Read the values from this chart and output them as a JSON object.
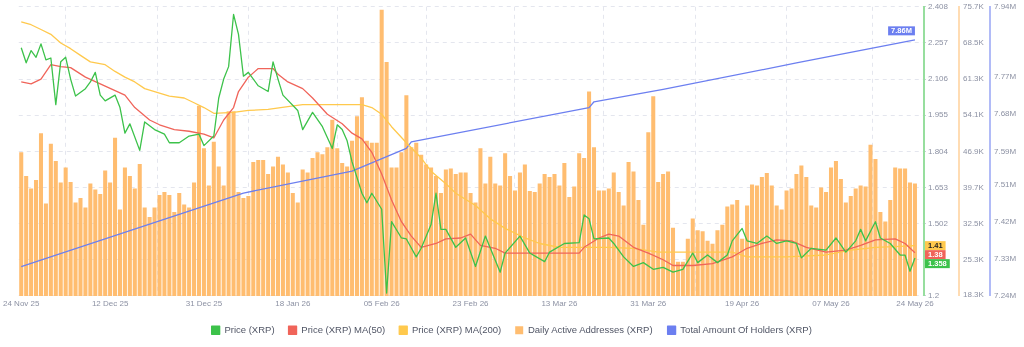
{
  "chart_data": {
    "type": "line",
    "legend": "bottom",
    "grid": true,
    "xlim": [
      "2025-11-23T12:00",
      "2026-05-25T20:00"
    ],
    "xticks": [
      {
        "value": "2025-11-24",
        "label": "24 Nov 25"
      },
      {
        "value": "2025-12-12",
        "label": "12 Dec 25"
      },
      {
        "value": "2025-12-31",
        "label": "31 Dec 25"
      },
      {
        "value": "2026-01-18",
        "label": "18 Jan 26"
      },
      {
        "value": "2026-02-05",
        "label": "05 Feb 26"
      },
      {
        "value": "2026-02-23",
        "label": "23 Feb 26"
      },
      {
        "value": "2026-03-13",
        "label": "13 Mar 26"
      },
      {
        "value": "2026-03-31",
        "label": "31 Mar 26"
      },
      {
        "value": "2026-04-19",
        "label": "19 Apr 26"
      },
      {
        "value": "2026-05-07",
        "label": "07 May 26"
      },
      {
        "value": "2026-05-24",
        "label": "24 May 26"
      }
    ],
    "ylim": [
      1.2,
      2.408
    ],
    "yticks": [
      1.2,
      {
        "value": 1.351,
        "label": null
      },
      1.502,
      1.653,
      1.804,
      1.955,
      2.106,
      2.257,
      2.408
    ],
    "y2lim": [
      18.1,
      75.7
    ],
    "y2ticks": [
      {
        "value": 18.3,
        "label": "18.3K"
      },
      {
        "value": 25.3,
        "label": "25.3K"
      },
      {
        "value": 32.5,
        "label": "32.5K"
      },
      {
        "value": 39.7,
        "label": "39.7K"
      },
      {
        "value": 46.9,
        "label": "46.9K"
      },
      {
        "value": 54.1,
        "label": "54.1K"
      },
      {
        "value": 61.3,
        "label": "61.3K"
      },
      {
        "value": 68.5,
        "label": "68.5K"
      },
      {
        "value": 75.7,
        "label": "75.7K"
      }
    ],
    "y3lim": [
      7.24,
      7.94
    ],
    "y3ticks": [
      {
        "value": 7.24,
        "label": "7.24M"
      },
      {
        "value": 7.33,
        "label": "7.33M"
      },
      {
        "value": 7.42,
        "label": "7.42M"
      },
      {
        "value": 7.51,
        "label": "7.51M"
      },
      {
        "value": 7.59,
        "label": "7.59M"
      },
      {
        "value": 7.68,
        "label": "7.68M"
      },
      {
        "value": 7.77,
        "label": "7.77M"
      },
      {
        "value": 7.85,
        "label": null
      },
      {
        "value": 7.94,
        "label": "7.94M"
      }
    ],
    "x": [
      "2025-11-24",
      "2025-11-25",
      "2025-11-26",
      "2025-11-27",
      "2025-11-28",
      "2025-11-29",
      "2025-11-30",
      "2025-12-01",
      "2025-12-02",
      "2025-12-03",
      "2025-12-04",
      "2025-12-05",
      "2025-12-06",
      "2025-12-07",
      "2025-12-08",
      "2025-12-09",
      "2025-12-10",
      "2025-12-11",
      "2025-12-12",
      "2025-12-13",
      "2025-12-14",
      "2025-12-15",
      "2025-12-16",
      "2025-12-17",
      "2025-12-18",
      "2025-12-19",
      "2025-12-20",
      "2025-12-21",
      "2025-12-22",
      "2025-12-23",
      "2025-12-24",
      "2025-12-25",
      "2025-12-26",
      "2025-12-27",
      "2025-12-28",
      "2025-12-29",
      "2025-12-30",
      "2025-12-31",
      "2026-01-01",
      "2026-01-02",
      "2026-01-03",
      "2026-01-04",
      "2026-01-05",
      "2026-01-06",
      "2026-01-07",
      "2026-01-08",
      "2026-01-09",
      "2026-01-10",
      "2026-01-11",
      "2026-01-12",
      "2026-01-13",
      "2026-01-14",
      "2026-01-15",
      "2026-01-16",
      "2026-01-17",
      "2026-01-18",
      "2026-01-19",
      "2026-01-20",
      "2026-01-21",
      "2026-01-22",
      "2026-01-23",
      "2026-01-24",
      "2026-01-25",
      "2026-01-26",
      "2026-01-27",
      "2026-01-28",
      "2026-01-29",
      "2026-01-30",
      "2026-01-31",
      "2026-02-01",
      "2026-02-02",
      "2026-02-03",
      "2026-02-04",
      "2026-02-05",
      "2026-02-06",
      "2026-02-07",
      "2026-02-08",
      "2026-02-09",
      "2026-02-10",
      "2026-02-11",
      "2026-02-12",
      "2026-02-13",
      "2026-02-14",
      "2026-02-15",
      "2026-02-16",
      "2026-02-17",
      "2026-02-18",
      "2026-02-19",
      "2026-02-20",
      "2026-02-21",
      "2026-02-22",
      "2026-02-23",
      "2026-02-24",
      "2026-02-25",
      "2026-02-26",
      "2026-02-27",
      "2026-02-28",
      "2026-03-01",
      "2026-03-02",
      "2026-03-03",
      "2026-03-04",
      "2026-03-05",
      "2026-03-06",
      "2026-03-07",
      "2026-03-08",
      "2026-03-09",
      "2026-03-10",
      "2026-03-11",
      "2026-03-12",
      "2026-03-13",
      "2026-03-14",
      "2026-03-15",
      "2026-03-16",
      "2026-03-17",
      "2026-03-18",
      "2026-03-19",
      "2026-03-20",
      "2026-03-21",
      "2026-03-22",
      "2026-03-23",
      "2026-03-24",
      "2026-03-25",
      "2026-03-26",
      "2026-03-27",
      "2026-03-28",
      "2026-03-29",
      "2026-03-30",
      "2026-03-31",
      "2026-04-01",
      "2026-04-02",
      "2026-04-03",
      "2026-04-04",
      "2026-04-05",
      "2026-04-06",
      "2026-04-07",
      "2026-04-08",
      "2026-04-09",
      "2026-04-10",
      "2026-04-11",
      "2026-04-12",
      "2026-04-13",
      "2026-04-14",
      "2026-04-15",
      "2026-04-16",
      "2026-04-17",
      "2026-04-18",
      "2026-04-19",
      "2026-04-20",
      "2026-04-21",
      "2026-04-22",
      "2026-04-23",
      "2026-04-24",
      "2026-04-25",
      "2026-04-26",
      "2026-04-27",
      "2026-04-28",
      "2026-04-29",
      "2026-04-30",
      "2026-05-01",
      "2026-05-02",
      "2026-05-03",
      "2026-05-04",
      "2026-05-05",
      "2026-05-06",
      "2026-05-07",
      "2026-05-08",
      "2026-05-09",
      "2026-05-10",
      "2026-05-11",
      "2026-05-12",
      "2026-05-13",
      "2026-05-14",
      "2026-05-15",
      "2026-05-16",
      "2026-05-17",
      "2026-05-18",
      "2026-05-19",
      "2026-05-20",
      "2026-05-21",
      "2026-05-22",
      "2026-05-23",
      "2026-05-24"
    ],
    "series": [
      {
        "name": "Price (XRP)",
        "color": "#3cc24a",
        "x": [
          "2025-11-24",
          "2025-11-25",
          "2025-11-26",
          "2025-11-27",
          "2025-11-28",
          "2025-11-29",
          "2025-11-30",
          "2025-12-01",
          "2025-12-02",
          "2025-12-03",
          "2025-12-04",
          "2025-12-05",
          "2025-12-07",
          "2025-12-08",
          "2025-12-09",
          "2025-12-10",
          "2025-12-11",
          "2025-12-13",
          "2025-12-14",
          "2025-12-15",
          "2025-12-16",
          "2025-12-18",
          "2025-12-19",
          "2025-12-21",
          "2025-12-23",
          "2025-12-24",
          "2025-12-26",
          "2025-12-28",
          "2025-12-30",
          "2025-12-31",
          "2026-01-02",
          "2026-01-03",
          "2026-01-04",
          "2026-01-05",
          "2026-01-06",
          "2026-01-07",
          "2026-01-08",
          "2026-01-09",
          "2026-01-11",
          "2026-01-13",
          "2026-01-14",
          "2026-01-15",
          "2026-01-16",
          "2026-01-19",
          "2026-01-20",
          "2026-01-22",
          "2026-01-24",
          "2026-01-26",
          "2026-01-27",
          "2026-01-28",
          "2026-01-29",
          "2026-01-30",
          "2026-02-01",
          "2026-02-02",
          "2026-02-03",
          "2026-02-05",
          "2026-02-06",
          "2026-02-07",
          "2026-02-09",
          "2026-02-10",
          "2026-02-12",
          "2026-02-13",
          "2026-02-15",
          "2026-02-16",
          "2026-02-17",
          "2026-02-18",
          "2026-02-20",
          "2026-02-22",
          "2026-02-24",
          "2026-02-26",
          "2026-03-01",
          "2026-03-02",
          "2026-03-05",
          "2026-03-07",
          "2026-03-10",
          "2026-03-11",
          "2026-03-14",
          "2026-03-17",
          "2026-03-18",
          "2026-03-19",
          "2026-03-20",
          "2026-03-23",
          "2026-03-24",
          "2026-03-26",
          "2026-03-28",
          "2026-03-30",
          "2026-04-01",
          "2026-04-03",
          "2026-04-05",
          "2026-04-07",
          "2026-04-09",
          "2026-04-10",
          "2026-04-12",
          "2026-04-14",
          "2026-04-16",
          "2026-04-17",
          "2026-04-19",
          "2026-04-20",
          "2026-04-22",
          "2026-04-24",
          "2026-04-26",
          "2026-04-28",
          "2026-04-30",
          "2026-05-01",
          "2026-05-03",
          "2026-05-06",
          "2026-05-08",
          "2026-05-10",
          "2026-05-12",
          "2026-05-13",
          "2026-05-14",
          "2026-05-16",
          "2026-05-17",
          "2026-05-19",
          "2026-05-21",
          "2026-05-22",
          "2026-05-23",
          "2026-05-24"
        ],
        "values": [
          2.237,
          2.174,
          2.225,
          2.197,
          2.253,
          2.186,
          2.194,
          1.999,
          2.178,
          2.197,
          2.106,
          2.035,
          2.066,
          2.094,
          2.134,
          2.039,
          2.015,
          2.039,
          1.987,
          1.88,
          1.919,
          1.808,
          1.927,
          1.895,
          1.876,
          1.84,
          1.84,
          1.868,
          1.876,
          1.828,
          1.868,
          2.027,
          2.106,
          2.158,
          2.376,
          2.293,
          2.118,
          2.134,
          2.078,
          2.054,
          2.178,
          2.106,
          2.039,
          1.975,
          1.895,
          1.967,
          1.907,
          1.816,
          1.915,
          1.895,
          1.848,
          1.76,
          1.629,
          1.589,
          1.629,
          1.562,
          1.212,
          1.51,
          1.442,
          1.438,
          1.363,
          1.399,
          1.498,
          1.629,
          1.478,
          1.478,
          1.403,
          1.442,
          1.323,
          1.45,
          1.299,
          1.379,
          1.45,
          1.379,
          1.343,
          1.383,
          1.419,
          1.423,
          1.538,
          1.522,
          1.438,
          1.442,
          1.419,
          1.363,
          1.323,
          1.339,
          1.311,
          1.319,
          1.299,
          1.311,
          1.379,
          1.339,
          1.371,
          1.339,
          1.371,
          1.43,
          1.482,
          1.43,
          1.419,
          1.45,
          1.419,
          1.43,
          1.419,
          1.359,
          1.399,
          1.391,
          1.442,
          1.383,
          1.43,
          1.478,
          1.43,
          1.51,
          1.442,
          1.419,
          1.371,
          1.37,
          1.303,
          1.358
        ],
        "value_labels": [
          null,
          null,
          null,
          null,
          null,
          null,
          null,
          null,
          null,
          null,
          null,
          null,
          null,
          null,
          null,
          null,
          null,
          null,
          null,
          null,
          null,
          null,
          null,
          null,
          null,
          null,
          null,
          null,
          null,
          null,
          null,
          null,
          null,
          null,
          null,
          null,
          null,
          null,
          null,
          null,
          null,
          null,
          null,
          null,
          null,
          null,
          null,
          null,
          null,
          null,
          null,
          null,
          null,
          null,
          null,
          null,
          null,
          null,
          null,
          null,
          null,
          null,
          null,
          null,
          null,
          null,
          null,
          null,
          null,
          null,
          null,
          null,
          null,
          null,
          null,
          null,
          null,
          null,
          null,
          null,
          null,
          null,
          null,
          null,
          null,
          null,
          null,
          null,
          null,
          null,
          null,
          null,
          null,
          null,
          null,
          null,
          null,
          null,
          null,
          null,
          null,
          null,
          null,
          null,
          null,
          null,
          null,
          null,
          null,
          null,
          null,
          null,
          null,
          null,
          null,
          null,
          null,
          "1.358"
        ]
      },
      {
        "name": "Price (XRP) MA(50)",
        "color": "#f0645a",
        "x": [
          "2025-11-24",
          "2025-11-26",
          "2025-11-28",
          "2025-11-30",
          "2025-12-02",
          "2025-12-04",
          "2025-12-07",
          "2025-12-10",
          "2025-12-13",
          "2025-12-15",
          "2025-12-17",
          "2025-12-20",
          "2025-12-22",
          "2025-12-25",
          "2025-12-28",
          "2025-12-31",
          "2026-01-02",
          "2026-01-04",
          "2026-01-06",
          "2026-01-07",
          "2026-01-09",
          "2026-01-11",
          "2026-01-14",
          "2026-01-15",
          "2026-01-17",
          "2026-01-20",
          "2026-01-22",
          "2026-01-25",
          "2026-01-28",
          "2026-01-30",
          "2026-02-01",
          "2026-02-03",
          "2026-02-05",
          "2026-02-07",
          "2026-02-09",
          "2026-02-11",
          "2026-02-13",
          "2026-02-16",
          "2026-02-18",
          "2026-02-21",
          "2026-02-23",
          "2026-02-25",
          "2026-02-28",
          "2026-03-02",
          "2026-03-07",
          "2026-03-10",
          "2026-03-13",
          "2026-03-17",
          "2026-03-18",
          "2026-03-21",
          "2026-03-23",
          "2026-03-25",
          "2026-03-28",
          "2026-03-31",
          "2026-04-03",
          "2026-04-05",
          "2026-04-09",
          "2026-04-13",
          "2026-04-17",
          "2026-04-20",
          "2026-04-23",
          "2026-04-26",
          "2026-04-29",
          "2026-05-02",
          "2026-05-06",
          "2026-05-10",
          "2026-05-13",
          "2026-05-16",
          "2026-05-20",
          "2026-05-22",
          "2026-05-24"
        ],
        "values": [
          2.094,
          2.086,
          2.106,
          2.166,
          2.158,
          2.154,
          2.114,
          2.086,
          2.058,
          2.039,
          1.987,
          1.935,
          1.915,
          1.895,
          1.888,
          1.876,
          1.86,
          1.935,
          1.987,
          2.054,
          2.114,
          2.15,
          2.15,
          2.126,
          2.094,
          2.066,
          2.027,
          1.959,
          1.919,
          1.88,
          1.856,
          1.8,
          1.709,
          1.601,
          1.51,
          1.45,
          1.403,
          1.419,
          1.438,
          1.442,
          1.458,
          1.411,
          1.399,
          1.379,
          1.379,
          1.379,
          1.379,
          1.379,
          1.403,
          1.442,
          1.458,
          1.45,
          1.403,
          1.379,
          1.351,
          1.327,
          1.327,
          1.335,
          1.363,
          1.399,
          1.419,
          1.434,
          1.43,
          1.403,
          1.383,
          1.391,
          1.411,
          1.434,
          1.438,
          1.419,
          1.38
        ],
        "value_labels": [
          null,
          null,
          null,
          null,
          null,
          null,
          null,
          null,
          null,
          null,
          null,
          null,
          null,
          null,
          null,
          null,
          null,
          null,
          null,
          null,
          null,
          null,
          null,
          null,
          null,
          null,
          null,
          null,
          null,
          null,
          null,
          null,
          null,
          null,
          null,
          null,
          null,
          null,
          null,
          null,
          null,
          null,
          null,
          null,
          null,
          null,
          null,
          null,
          null,
          null,
          null,
          null,
          null,
          null,
          null,
          null,
          null,
          null,
          null,
          null,
          null,
          null,
          null,
          null,
          null,
          null,
          null,
          null,
          null,
          null,
          "1.38"
        ]
      },
      {
        "name": "Price (XRP) MA(200)",
        "color": "#ffc94d",
        "x": [
          "2025-11-24",
          "2025-11-26",
          "2025-11-28",
          "2025-11-30",
          "2025-12-02",
          "2025-12-04",
          "2025-12-06",
          "2025-12-08",
          "2025-12-11",
          "2025-12-13",
          "2025-12-15",
          "2025-12-17",
          "2025-12-19",
          "2025-12-21",
          "2025-12-24",
          "2025-12-27",
          "2025-12-29",
          "2025-12-31",
          "2026-01-02",
          "2026-01-06",
          "2026-01-09",
          "2026-01-13",
          "2026-01-17",
          "2026-01-20",
          "2026-01-25",
          "2026-02-01",
          "2026-02-03",
          "2026-02-05",
          "2026-02-07",
          "2026-02-10",
          "2026-02-13",
          "2026-02-15",
          "2026-02-18",
          "2026-02-20",
          "2026-02-24",
          "2026-02-27",
          "2026-03-02",
          "2026-03-06",
          "2026-03-09",
          "2026-03-13",
          "2026-03-18",
          "2026-03-23",
          "2026-03-28",
          "2026-04-02",
          "2026-04-07",
          "2026-04-12",
          "2026-04-17",
          "2026-04-20",
          "2026-04-28",
          "2026-05-06",
          "2026-05-11",
          "2026-05-16",
          "2026-05-21",
          "2026-05-24"
        ],
        "values": [
          2.345,
          2.333,
          2.313,
          2.293,
          2.257,
          2.233,
          2.205,
          2.178,
          2.166,
          2.138,
          2.114,
          2.094,
          2.066,
          2.054,
          2.035,
          2.027,
          2.007,
          1.987,
          1.963,
          1.967,
          1.975,
          1.979,
          1.991,
          1.999,
          1.999,
          1.999,
          1.987,
          1.959,
          1.907,
          1.84,
          1.776,
          1.721,
          1.669,
          1.629,
          1.578,
          1.522,
          1.482,
          1.442,
          1.419,
          1.403,
          1.403,
          1.403,
          1.399,
          1.383,
          1.383,
          1.383,
          1.383,
          1.363,
          1.363,
          1.371,
          1.391,
          1.403,
          1.407,
          1.41
        ],
        "value_labels": [
          null,
          null,
          null,
          null,
          null,
          null,
          null,
          null,
          null,
          null,
          null,
          null,
          null,
          null,
          null,
          null,
          null,
          null,
          null,
          null,
          null,
          null,
          null,
          null,
          null,
          null,
          null,
          null,
          null,
          null,
          null,
          null,
          null,
          null,
          null,
          null,
          null,
          null,
          null,
          null,
          null,
          null,
          null,
          null,
          null,
          null,
          null,
          null,
          null,
          null,
          null,
          null,
          null,
          "1.41"
        ]
      },
      {
        "name": "Daily Active Addresses (XRP)",
        "type": "bar",
        "axis": "y2",
        "color": "#ffbd70",
        "values": [
          46.7,
          42.0,
          39.5,
          41.2,
          50.5,
          36.5,
          48.4,
          45.0,
          40.7,
          43.7,
          40.8,
          36.7,
          37.6,
          35.7,
          40.5,
          39.3,
          38.4,
          43.1,
          40.7,
          49.6,
          35.3,
          43.7,
          42.0,
          39.5,
          44.4,
          35.7,
          33.8,
          35.7,
          38.2,
          38.8,
          38.2,
          34.8,
          38.6,
          36.3,
          35.7,
          40.7,
          56.0,
          47.5,
          40.1,
          48.8,
          43.9,
          40.1,
          54.9,
          54.9,
          38.8,
          37.6,
          38.0,
          44.8,
          45.2,
          45.2,
          42.4,
          43.9,
          45.8,
          44.3,
          42.7,
          38.6,
          36.7,
          43.3,
          42.7,
          45.6,
          46.7,
          46.3,
          47.7,
          53.2,
          47.5,
          44.6,
          43.9,
          49.0,
          53.9,
          57.7,
          49.0,
          48.6,
          48.6,
          75.1,
          64.7,
          43.7,
          43.7,
          46.7,
          58.1,
          47.7,
          48.6,
          46.2,
          44.3,
          43.7,
          42.0,
          38.6,
          43.3,
          43.5,
          42.4,
          42.7,
          42.7,
          38.6,
          36.7,
          47.5,
          40.5,
          45.8,
          40.5,
          40.1,
          46.5,
          42.0,
          39.1,
          42.7,
          44.3,
          39.0,
          38.8,
          40.5,
          42.4,
          41.8,
          42.4,
          40.1,
          44.6,
          37.8,
          39.9,
          46.5,
          45.6,
          58.8,
          47.7,
          39.1,
          39.1,
          39.5,
          42.7,
          38.8,
          36.1,
          44.8,
          42.9,
          37.2,
          32.3,
          50.7,
          57.9,
          40.8,
          42.4,
          42.9,
          31.7,
          24.9,
          24.9,
          29.5,
          33.5,
          31.2,
          31.0,
          29.1,
          28.5,
          31.2,
          32.3,
          35.9,
          36.3,
          37.2,
          29.5,
          36.1,
          40.3,
          40.1,
          41.8,
          42.6,
          40.1,
          36.1,
          35.3,
          39.1,
          39.5,
          42.4,
          44.1,
          41.8,
          36.1,
          35.7,
          39.7,
          38.8,
          43.7,
          45.0,
          41.4,
          36.7,
          38.0,
          39.5,
          40.1,
          39.9,
          48.2,
          45.4,
          34.8,
          32.9,
          37.2,
          43.7,
          43.5,
          43.5,
          40.7,
          40.5
        ]
      },
      {
        "name": "Total Amount Of Holders (XRP)",
        "axis": "y3",
        "color": "#6c7ff0",
        "x": [
          "2025-11-24",
          "2026-01-08",
          "2026-01-30",
          "2026-02-10",
          "2026-02-11",
          "2026-03-19",
          "2026-03-20",
          "2026-04-03",
          "2026-04-30",
          "2026-05-24"
        ],
        "values": [
          7.311,
          7.489,
          7.542,
          7.597,
          7.613,
          7.696,
          7.71,
          7.74,
          7.804,
          7.86
        ],
        "value_labels": [
          null,
          null,
          null,
          null,
          null,
          null,
          null,
          null,
          null,
          "7.86M"
        ]
      }
    ]
  }
}
